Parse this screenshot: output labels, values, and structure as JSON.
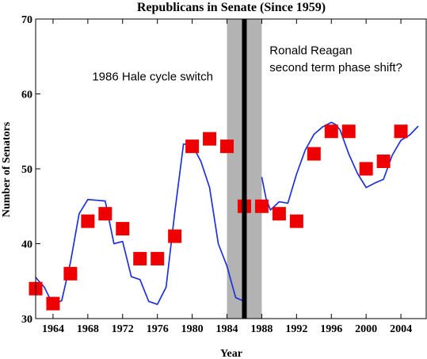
{
  "chart_data": {
    "type": "scatter",
    "title": "Republicans in Senate (Since 1959)",
    "xlabel": "Year",
    "ylabel": "Number of Senators",
    "xlim": [
      1962,
      2007
    ],
    "ylim": [
      30,
      70
    ],
    "x_ticks": [
      1964,
      1968,
      1972,
      1976,
      1980,
      1984,
      1988,
      1992,
      1996,
      2000,
      2004
    ],
    "y_ticks": [
      30,
      40,
      50,
      60,
      70
    ],
    "grid": false,
    "colors": {
      "markers": "#ee0000",
      "line": "#1f32d6",
      "band": "#b3b3b3",
      "switch_line": "#000000"
    },
    "series": [
      {
        "kind": "markers",
        "x": [
          1962,
          1964,
          1966,
          1968,
          1970,
          1972,
          1974,
          1976,
          1978,
          1980,
          1982,
          1984,
          1986,
          1988,
          1990,
          1992,
          1994,
          1996,
          1998,
          2000,
          2002,
          2004
        ],
        "y": [
          34,
          32,
          36,
          43,
          44,
          42,
          38,
          38,
          41,
          53,
          54,
          53,
          45,
          45,
          44,
          43,
          52,
          55,
          55,
          50,
          51,
          55
        ]
      },
      {
        "kind": "line",
        "segments": [
          {
            "x": [
              1962,
              1963,
              1964,
              1965,
              1966,
              1967,
              1968,
              1969,
              1970,
              1971,
              1972,
              1973,
              1974,
              1975,
              1976,
              1977,
              1978,
              1979,
              1980,
              1981,
              1982,
              1983,
              1984,
              1985,
              1986
            ],
            "y": [
              35.5,
              34.2,
              31.8,
              32.4,
              37.5,
              44.0,
              45.9,
              45.8,
              45.7,
              40.0,
              40.3,
              35.6,
              35.2,
              32.3,
              31.9,
              34.2,
              44.2,
              53.3,
              53.2,
              51.0,
              47.5,
              40.0,
              37.0,
              32.8,
              32.3
            ]
          },
          {
            "x": [
              1988,
              1988.5,
              1989,
              1990,
              1991,
              1992,
              1993,
              1994,
              1995,
              1996,
              1996.5,
              1997,
              1998,
              1999,
              2000,
              2001,
              2002,
              2003,
              2004,
              2005,
              2006
            ],
            "y": [
              48.9,
              46.0,
              44.5,
              45.6,
              45.4,
              49.3,
              52.5,
              54.6,
              55.6,
              56.2,
              55.9,
              55.2,
              52.0,
              49.4,
              47.5,
              48.1,
              48.6,
              51.8,
              53.8,
              54.5,
              55.7
            ]
          }
        ]
      }
    ],
    "shaded_band": {
      "x": [
        1984,
        1988
      ]
    },
    "vertical_line": {
      "x": 1986
    },
    "annotations": [
      {
        "text": "1986 Hale cycle switch",
        "x": 1968.5,
        "y": 61.8
      },
      {
        "text": "Ronald Reagan",
        "x": 1988.9,
        "y": 65.3
      },
      {
        "text": "second term phase shift?",
        "x": 1988.9,
        "y": 63.0
      }
    ]
  }
}
